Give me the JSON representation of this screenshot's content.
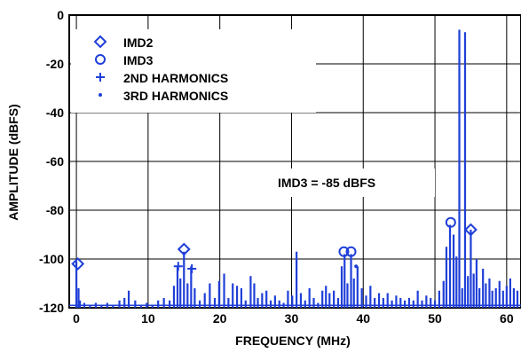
{
  "chart_data": {
    "type": "bar",
    "xlabel": "FREQUENCY (MHz)",
    "ylabel": "AMPLITUDE (dBFS)",
    "xlim": [
      -1,
      62
    ],
    "ylim": [
      -120,
      0
    ],
    "x_ticks": [
      0,
      10,
      20,
      30,
      40,
      50,
      60
    ],
    "y_ticks": [
      0,
      -20,
      -40,
      -60,
      -80,
      -100,
      -120
    ],
    "grid": true,
    "legend_placement": "top-left",
    "line_color": "#1f3fd8",
    "marker_color": "#1f3fd8",
    "annotation": "IMD3 = -85 dBFS",
    "legend": [
      {
        "label": "IMD2",
        "marker": "diamond"
      },
      {
        "label": "IMD3",
        "marker": "circle"
      },
      {
        "label": "2ND HARMONICS",
        "marker": "plus"
      },
      {
        "label": "3RD HARMONICS",
        "marker": "dot"
      }
    ],
    "series": [
      {
        "name": "spectrum",
        "points": [
          [
            0.0,
            -101
          ],
          [
            0.3,
            -112
          ],
          [
            0.5,
            -117
          ],
          [
            1.1,
            -118
          ],
          [
            1.9,
            -119
          ],
          [
            2.7,
            -118
          ],
          [
            3.5,
            -119
          ],
          [
            4.3,
            -118
          ],
          [
            5.1,
            -119
          ],
          [
            6.0,
            -117
          ],
          [
            6.7,
            -116
          ],
          [
            7.3,
            -113
          ],
          [
            8.2,
            -117
          ],
          [
            9.0,
            -119
          ],
          [
            9.8,
            -118
          ],
          [
            10.6,
            -119
          ],
          [
            11.4,
            -117
          ],
          [
            12.2,
            -116
          ],
          [
            13.0,
            -117
          ],
          [
            13.6,
            -111
          ],
          [
            14.1,
            -103
          ],
          [
            14.5,
            -108
          ],
          [
            15.0,
            -97
          ],
          [
            15.5,
            -110
          ],
          [
            16.0,
            -103
          ],
          [
            16.5,
            -112
          ],
          [
            17.2,
            -117
          ],
          [
            17.9,
            -114
          ],
          [
            18.6,
            -110
          ],
          [
            19.3,
            -116
          ],
          [
            19.9,
            -109
          ],
          [
            20.6,
            -106
          ],
          [
            21.2,
            -116
          ],
          [
            21.8,
            -110
          ],
          [
            22.4,
            -111
          ],
          [
            23.0,
            -112
          ],
          [
            23.6,
            -117
          ],
          [
            24.3,
            -107
          ],
          [
            24.8,
            -110
          ],
          [
            25.3,
            -116
          ],
          [
            25.9,
            -114
          ],
          [
            26.5,
            -113
          ],
          [
            27.1,
            -117
          ],
          [
            27.7,
            -115
          ],
          [
            28.3,
            -117
          ],
          [
            28.9,
            -118
          ],
          [
            29.5,
            -113
          ],
          [
            30.1,
            -115
          ],
          [
            30.7,
            -97
          ],
          [
            31.3,
            -114
          ],
          [
            31.9,
            -117
          ],
          [
            32.5,
            -112
          ],
          [
            33.1,
            -116
          ],
          [
            33.7,
            -118
          ],
          [
            34.3,
            -113
          ],
          [
            34.8,
            -111
          ],
          [
            35.3,
            -114
          ],
          [
            35.9,
            -113
          ],
          [
            36.5,
            -116
          ],
          [
            37.0,
            -103
          ],
          [
            37.4,
            -98
          ],
          [
            37.8,
            -110
          ],
          [
            38.3,
            -98
          ],
          [
            38.7,
            -108
          ],
          [
            39.2,
            -103
          ],
          [
            39.8,
            -112
          ],
          [
            40.4,
            -115
          ],
          [
            41.0,
            -111
          ],
          [
            41.6,
            -116
          ],
          [
            42.2,
            -114
          ],
          [
            42.8,
            -116
          ],
          [
            43.4,
            -114
          ],
          [
            44.0,
            -117
          ],
          [
            44.6,
            -115
          ],
          [
            45.2,
            -116
          ],
          [
            45.8,
            -117
          ],
          [
            46.4,
            -116
          ],
          [
            47.0,
            -117
          ],
          [
            47.6,
            -113
          ],
          [
            48.2,
            -117
          ],
          [
            48.8,
            -115
          ],
          [
            49.4,
            -116
          ],
          [
            50.0,
            -117
          ],
          [
            50.6,
            -113
          ],
          [
            51.2,
            -109
          ],
          [
            51.6,
            -95
          ],
          [
            52.1,
            -86
          ],
          [
            52.6,
            -90
          ],
          [
            53.0,
            -99
          ],
          [
            53.4,
            -6
          ],
          [
            53.8,
            -112
          ],
          [
            54.2,
            -7
          ],
          [
            54.6,
            -107
          ],
          [
            55.0,
            -88
          ],
          [
            55.4,
            -106
          ],
          [
            55.8,
            -100
          ],
          [
            56.2,
            -112
          ],
          [
            56.7,
            -104
          ],
          [
            57.1,
            -110
          ],
          [
            57.6,
            -108
          ],
          [
            58.0,
            -113
          ],
          [
            58.5,
            -112
          ],
          [
            59.0,
            -109
          ],
          [
            59.5,
            -113
          ],
          [
            60.0,
            -111
          ],
          [
            60.5,
            -108
          ],
          [
            61.0,
            -112
          ],
          [
            61.5,
            -113
          ]
        ]
      }
    ],
    "markers": {
      "imd2": [
        [
          0.2,
          -102
        ],
        [
          15.0,
          -96
        ],
        [
          55.0,
          -88
        ]
      ],
      "imd3": [
        [
          37.3,
          -97
        ],
        [
          38.3,
          -97
        ],
        [
          52.2,
          -85
        ]
      ],
      "harm2": [
        [
          14.2,
          -103
        ],
        [
          16.1,
          -104
        ]
      ],
      "harm3": [
        [
          39.0,
          -103
        ]
      ]
    }
  }
}
